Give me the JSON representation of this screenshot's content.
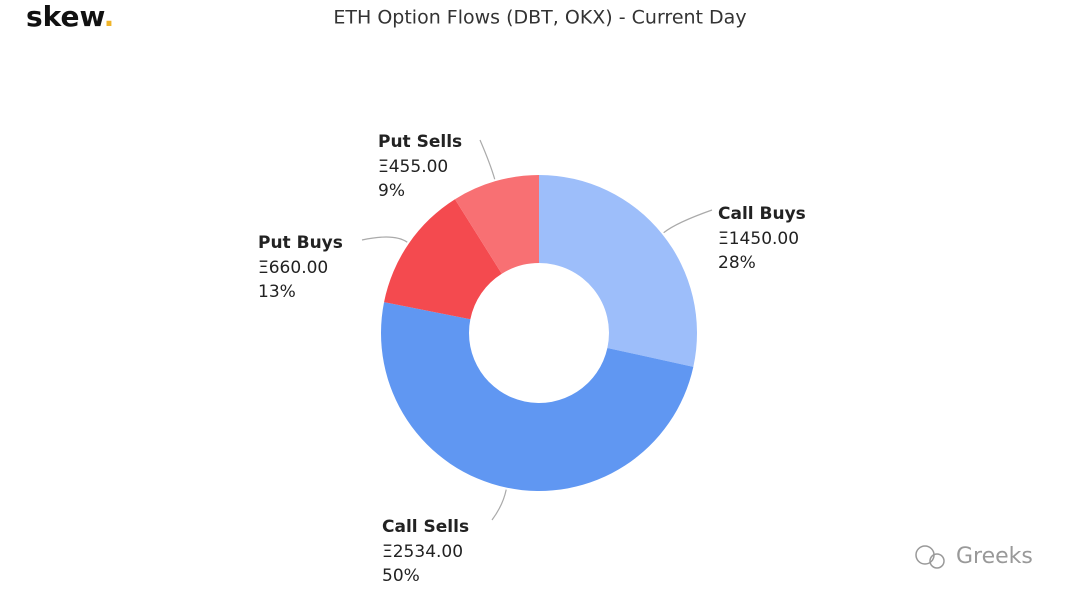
{
  "logo": "skew",
  "logo_mark": ".",
  "watermark": "Greeks",
  "chart_data": {
    "type": "pie",
    "donut": true,
    "title": "ETH Option Flows (DBT, OKX) - Current Day",
    "categories": [
      "Call Buys",
      "Call Sells",
      "Put Buys",
      "Put Sells"
    ],
    "values": [
      1450,
      2534,
      660,
      455
    ],
    "value_labels": [
      "Ξ1450.00",
      "Ξ2534.00",
      "Ξ660.00",
      "Ξ455.00"
    ],
    "percent_labels": [
      "28%",
      "50%",
      "13%",
      "9%"
    ],
    "colors": [
      "#9dbefa",
      "#6097f2",
      "#f44a4f",
      "#f87073"
    ]
  }
}
